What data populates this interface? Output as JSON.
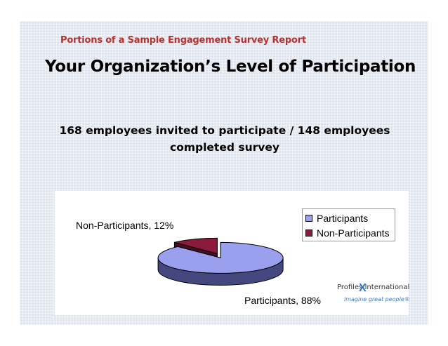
{
  "slide": {
    "subtitle": "Portions of a Sample Engagement Survey Report",
    "title": "Your Organization’s Level of Participation",
    "statement_line1": "168 employees invited to participate / 148 employees",
    "statement_line2": "completed survey"
  },
  "chart_data": {
    "type": "pie",
    "title": "",
    "categories": [
      "Participants",
      "Non-Participants"
    ],
    "values": [
      88,
      12
    ],
    "data_labels": [
      "Participants, 88%",
      "Non-Participants, 12%"
    ],
    "colors": [
      "#9aa0ee",
      "#8b1a3c"
    ],
    "side_colors": [
      "#45487f",
      "#4a0c20"
    ],
    "legend": {
      "placement": "right",
      "entries": [
        "Participants",
        "Non-Participants"
      ]
    },
    "style": "3d-exploded"
  },
  "logo": {
    "line1": "Profiles International",
    "line2": "imagine great people®",
    "mark": "X"
  }
}
